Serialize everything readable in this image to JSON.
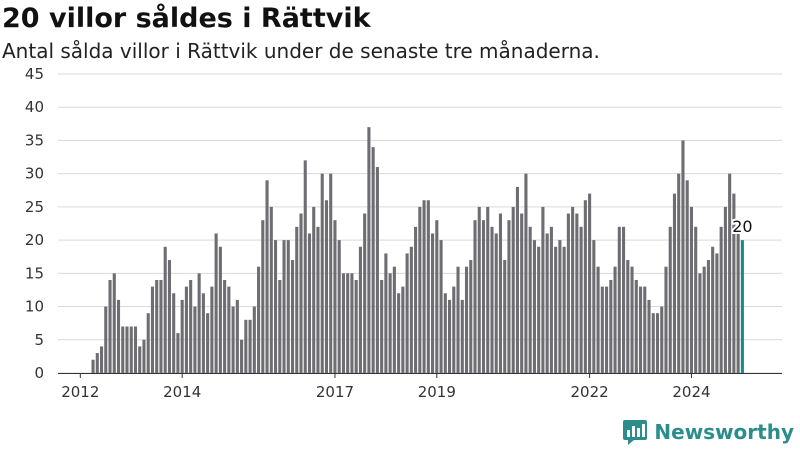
{
  "title": "20 villor såldes i Rättvik",
  "subtitle": "Antal sålda villor i Rättvik under de senaste tre månaderna.",
  "brand": {
    "name": "Newsworthy",
    "icon": "newsworthy-logo-icon"
  },
  "colors": {
    "bar": "#6e6d72",
    "highlight": "#1b8a8b",
    "brand": "#2c8d8d"
  },
  "chart_data": {
    "type": "bar",
    "x_ticks": [
      "2012",
      "2014",
      "2017",
      "2019",
      "2022",
      "2024"
    ],
    "y_ticks": [
      0,
      5,
      10,
      15,
      20,
      25,
      30,
      35,
      40,
      45
    ],
    "ylim": [
      0,
      45
    ],
    "grid": true,
    "highlight_last": true,
    "last_label": "20",
    "values": [
      2,
      3,
      4,
      10,
      14,
      15,
      11,
      7,
      7,
      7,
      7,
      4,
      5,
      9,
      13,
      14,
      14,
      19,
      17,
      12,
      6,
      11,
      13,
      14,
      10,
      15,
      12,
      9,
      13,
      21,
      19,
      14,
      13,
      10,
      11,
      5,
      8,
      8,
      10,
      16,
      23,
      29,
      25,
      20,
      14,
      20,
      20,
      17,
      22,
      24,
      32,
      21,
      25,
      22,
      30,
      26,
      30,
      23,
      20,
      15,
      15,
      15,
      14,
      19,
      24,
      37,
      34,
      31,
      14,
      18,
      15,
      16,
      12,
      13,
      18,
      19,
      22,
      25,
      26,
      26,
      21,
      23,
      20,
      12,
      11,
      13,
      16,
      11,
      16,
      17,
      23,
      25,
      23,
      25,
      22,
      21,
      24,
      17,
      23,
      25,
      28,
      24,
      30,
      22,
      20,
      19,
      25,
      21,
      22,
      19,
      20,
      19,
      24,
      25,
      24,
      22,
      26,
      27,
      20,
      16,
      13,
      13,
      14,
      16,
      22,
      22,
      17,
      16,
      14,
      13,
      13,
      11,
      9,
      9,
      10,
      16,
      22,
      27,
      30,
      35,
      29,
      25,
      22,
      15,
      16,
      17,
      19,
      18,
      22,
      25,
      30,
      27,
      22,
      20
    ]
  }
}
